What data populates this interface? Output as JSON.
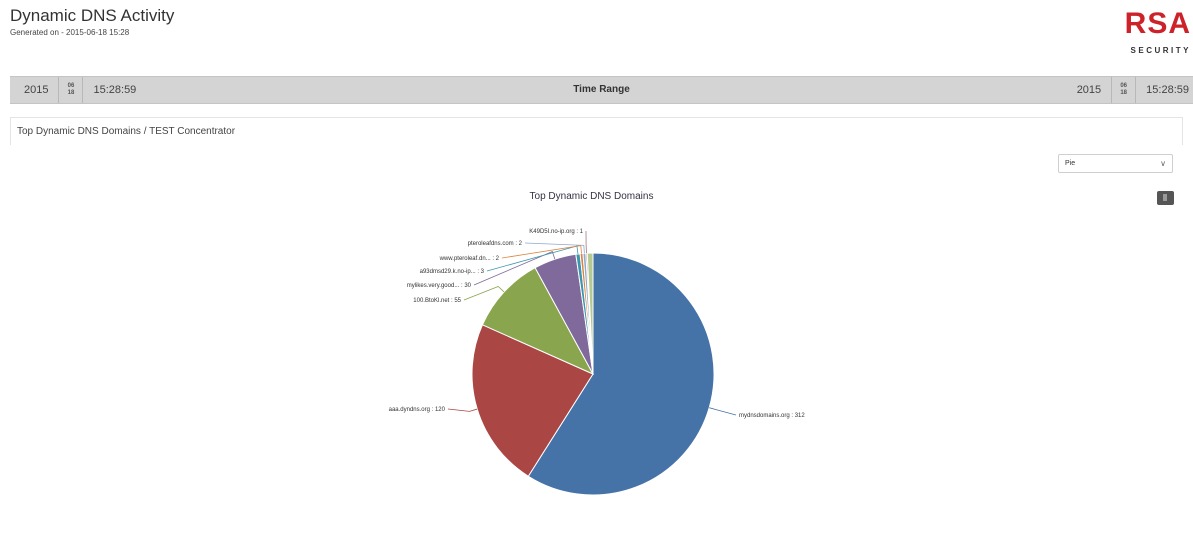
{
  "report": {
    "title": "Dynamic DNS Activity",
    "generated": "Generated on - 2015-06-18 15:28"
  },
  "logo": {
    "brand": "RSA",
    "tagline": "SECURITY",
    "color": "#cc2229"
  },
  "time_range": {
    "label": "Time Range",
    "start": {
      "year": "2015",
      "month": "06",
      "day": "18",
      "time": "15:28:59"
    },
    "end": {
      "year": "2015",
      "month": "06",
      "day": "18",
      "time": "15:28:59"
    }
  },
  "panel": {
    "title": "Top Dynamic DNS Domains / TEST Concentrator",
    "chart_type_select": "Pie",
    "export_icon": "download-icon"
  },
  "chart_data": {
    "type": "pie",
    "title": "Top Dynamic DNS Domains",
    "slices": [
      {
        "label": "mydnsdomains.org : 312",
        "value": 312,
        "color": "#4572a7"
      },
      {
        "label": "aaa.dyndns.org : 120",
        "value": 120,
        "color": "#aa4643"
      },
      {
        "label": "100.BtoKl.net : 55",
        "value": 55,
        "color": "#89a54e"
      },
      {
        "label": "mylikes.very.good... : 30",
        "value": 30,
        "color": "#80699b"
      },
      {
        "label": "a93dmsd29.k.no-ip... : 3",
        "value": 3,
        "color": "#3d96ae"
      },
      {
        "label": "www.pteroleaf.dn... : 2",
        "value": 2,
        "color": "#db843d"
      },
      {
        "label": "pteroleafdns.com : 2",
        "value": 2,
        "color": "#92a8cd"
      },
      {
        "label": "K49D5I.no-ip.org : 1",
        "value": 1,
        "color": "#a47d7c"
      },
      {
        "label": "",
        "value": 4,
        "color": "#b5ca92"
      }
    ]
  }
}
